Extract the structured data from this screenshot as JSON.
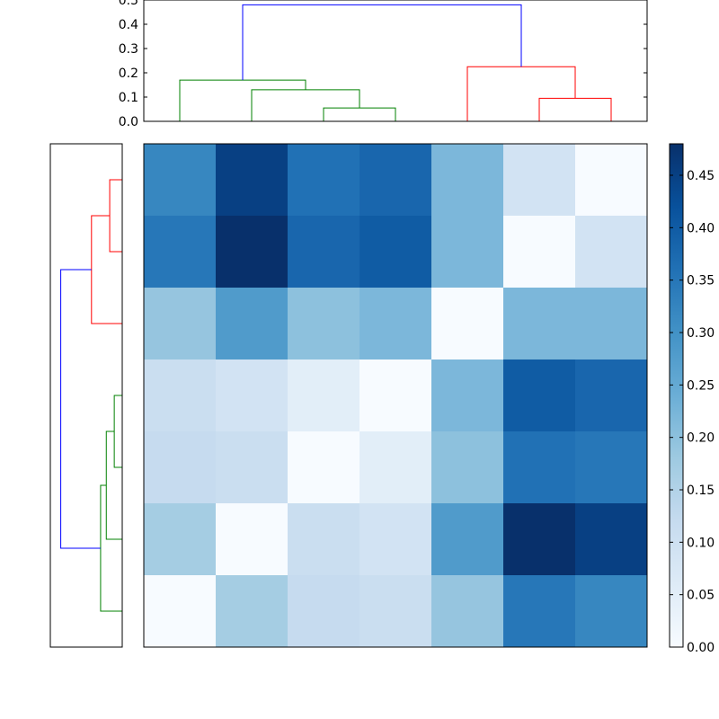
{
  "chart_data": {
    "type": "heatmap",
    "title": "",
    "xlabel": "",
    "ylabel": "",
    "colormap": "Blues",
    "value_range": [
      0,
      0.48
    ],
    "matrix": [
      [
        0.32,
        0.45,
        0.36,
        0.38,
        0.22,
        0.09,
        0.0
      ],
      [
        0.35,
        0.48,
        0.38,
        0.4,
        0.22,
        0.0,
        0.09
      ],
      [
        0.19,
        0.28,
        0.2,
        0.22,
        0.0,
        0.22,
        0.22
      ],
      [
        0.11,
        0.09,
        0.05,
        0.0,
        0.22,
        0.4,
        0.38
      ],
      [
        0.12,
        0.11,
        0.0,
        0.05,
        0.2,
        0.36,
        0.35
      ],
      [
        0.17,
        0.0,
        0.11,
        0.09,
        0.28,
        0.48,
        0.45
      ],
      [
        0.0,
        0.17,
        0.12,
        0.11,
        0.19,
        0.35,
        0.32
      ]
    ],
    "colorbar": {
      "ticks": [
        0.0,
        0.05,
        0.1,
        0.15,
        0.2,
        0.25,
        0.3,
        0.35,
        0.4,
        0.45
      ],
      "tick_labels": [
        "0.00",
        "0.05",
        "0.10",
        "0.15",
        "0.20",
        "0.25",
        "0.30",
        "0.35",
        "0.40",
        "0.45"
      ]
    },
    "top_dendrogram": {
      "ylim": [
        0,
        0.5
      ],
      "y_ticks": [
        0.0,
        0.1,
        0.2,
        0.3,
        0.4,
        0.5
      ],
      "y_tick_labels": [
        "0.0",
        "0.1",
        "0.2",
        "0.3",
        "0.4",
        "0.5"
      ],
      "links": [
        {
          "x": [
            2,
            3
          ],
          "h": 0.055,
          "child_h": [
            0,
            0
          ],
          "color": "#008000"
        },
        {
          "x": [
            1,
            2.5
          ],
          "h": 0.13,
          "child_h": [
            0,
            0.055
          ],
          "color": "#008000"
        },
        {
          "x": [
            0,
            1.75
          ],
          "h": 0.17,
          "child_h": [
            0,
            0.13
          ],
          "color": "#008000"
        },
        {
          "x": [
            5,
            6
          ],
          "h": 0.095,
          "child_h": [
            0,
            0
          ],
          "color": "#ff0000"
        },
        {
          "x": [
            4,
            5.5
          ],
          "h": 0.225,
          "child_h": [
            0,
            0.095
          ],
          "color": "#ff0000"
        },
        {
          "x": [
            0.875,
            4.75
          ],
          "h": 0.48,
          "child_h": [
            0.17,
            0.225
          ],
          "color": "#0000ff"
        }
      ]
    },
    "left_dendrogram": {
      "links": [
        {
          "y": [
            0,
            1
          ],
          "h": 0.055,
          "child_h": [
            0,
            0
          ],
          "color": "#ff0000"
        },
        {
          "y": [
            0.5,
            2
          ],
          "h": 0.135,
          "child_h": [
            0.055,
            0
          ],
          "color": "#ff0000"
        },
        {
          "y": [
            3,
            4
          ],
          "h": 0.035,
          "child_h": [
            0,
            0
          ],
          "color": "#008000"
        },
        {
          "y": [
            3.5,
            5
          ],
          "h": 0.07,
          "child_h": [
            0.035,
            0
          ],
          "color": "#008000"
        },
        {
          "y": [
            4.25,
            6
          ],
          "h": 0.095,
          "child_h": [
            0.07,
            0
          ],
          "color": "#008000"
        },
        {
          "y": [
            1.25,
            5.125
          ],
          "h": 0.27,
          "child_h": [
            0.135,
            0.095
          ],
          "color": "#0000ff"
        }
      ]
    }
  }
}
